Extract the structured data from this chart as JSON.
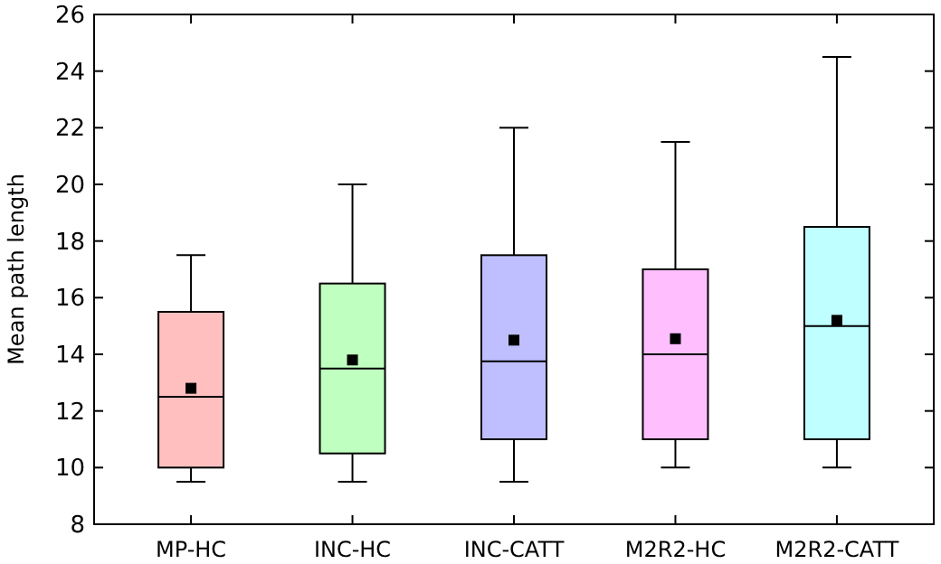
{
  "chart_data": {
    "type": "box",
    "ylabel": "Mean path length",
    "categories": [
      "MP-HC",
      "INC-HC",
      "INC-CATT",
      "M2R2-HC",
      "M2R2-CATT"
    ],
    "colors": [
      "#ffbfbf",
      "#bfffbf",
      "#bfbfff",
      "#ffbfff",
      "#bfffff"
    ],
    "boxes": [
      {
        "low": 9.5,
        "q1": 10,
        "median": 12.5,
        "q3": 15.5,
        "high": 17.5,
        "mean": 12.8
      },
      {
        "low": 9.5,
        "q1": 10.5,
        "median": 13.5,
        "q3": 16.5,
        "high": 20,
        "mean": 13.8
      },
      {
        "low": 9.5,
        "q1": 11,
        "median": 13.75,
        "q3": 17.5,
        "high": 22,
        "mean": 14.5
      },
      {
        "low": 10,
        "q1": 11,
        "median": 14,
        "q3": 17,
        "high": 21.5,
        "mean": 14.55
      },
      {
        "low": 10,
        "q1": 11,
        "median": 15,
        "q3": 18.5,
        "high": 24.5,
        "mean": 15.2
      }
    ],
    "ylim": [
      8,
      26
    ],
    "yticks": [
      8,
      10,
      12,
      14,
      16,
      18,
      20,
      22,
      24,
      26
    ],
    "marker": "square"
  }
}
